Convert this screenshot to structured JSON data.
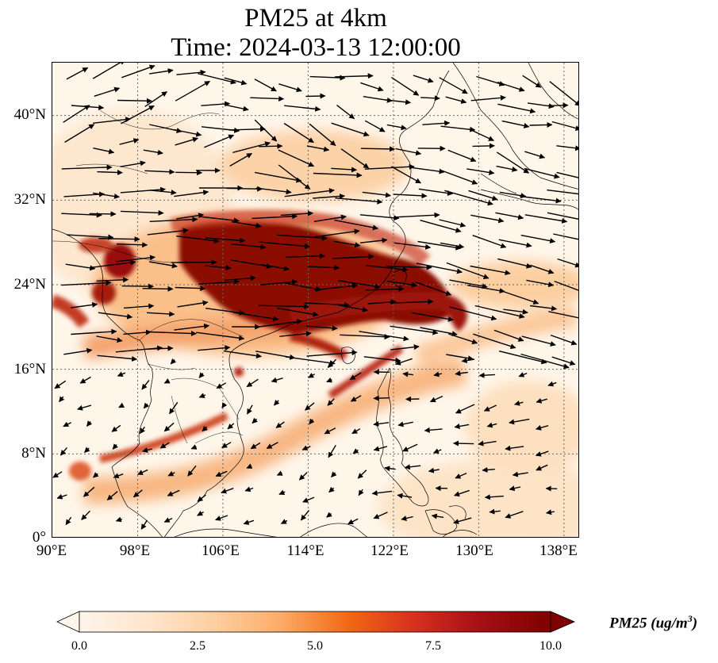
{
  "title_line1": "PM25 at 4km",
  "title_line2": "Time: 2024-03-13 12:00:00",
  "lon_ticks": [
    "90°E",
    "98°E",
    "106°E",
    "114°E",
    "122°E",
    "130°E",
    "138°E"
  ],
  "lat_ticks": [
    "40°N",
    "32°N",
    "24°N",
    "16°N",
    "8°N",
    "0°"
  ],
  "lon_range": [
    90,
    139.5
  ],
  "lat_range": [
    0,
    45
  ],
  "colorbar": {
    "label_main": "PM25 (ug/m",
    "label_sup": "3",
    "label_end": ")",
    "ticks": [
      "0.0",
      "2.5",
      "5.0",
      "7.5",
      "10.0"
    ],
    "min": 0,
    "max": 10,
    "colors": [
      "#fff5eb",
      "#fee6ce",
      "#fdd0a2",
      "#fdae6b",
      "#f16913",
      "#d7301f",
      "#a50f15",
      "#7f0000"
    ]
  },
  "colors": {
    "land_outline": "#000000",
    "gridline": "#666666",
    "arrow": "#000000"
  }
}
